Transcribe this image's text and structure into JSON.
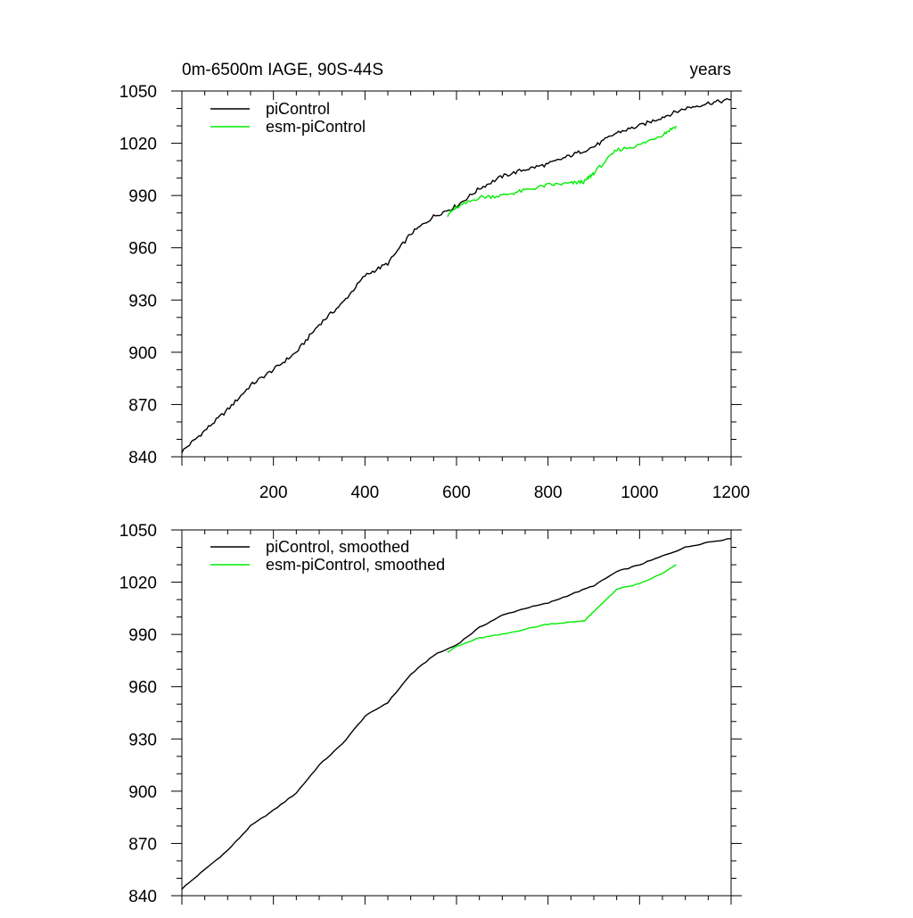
{
  "chart_data": [
    {
      "type": "line",
      "title": "0m-6500m IAGE, 90S-44S",
      "units": "years",
      "xlim": [
        0,
        1200
      ],
      "ylim": [
        840,
        1050
      ],
      "xticks": [
        "200",
        "400",
        "600",
        "800",
        "1000",
        "1200"
      ],
      "yticks": [
        "840",
        "870",
        "900",
        "930",
        "960",
        "990",
        "1020",
        "1050"
      ],
      "legend_position": "top-left",
      "grid": false,
      "series": [
        {
          "name": "piControl",
          "color": "#000000",
          "x": [
            0,
            50,
            100,
            150,
            200,
            250,
            300,
            350,
            400,
            450,
            500,
            550,
            600,
            650,
            700,
            750,
            800,
            850,
            900,
            950,
            1000,
            1050,
            1100,
            1150,
            1200
          ],
          "y": [
            843,
            855,
            867,
            881,
            890,
            900,
            916,
            928,
            944,
            951,
            968,
            978,
            984,
            994,
            1001,
            1005,
            1008,
            1013,
            1018,
            1026,
            1030,
            1035,
            1040,
            1043,
            1045
          ]
        },
        {
          "name": "esm-piControl",
          "color": "#00ee00",
          "x": [
            580,
            600,
            650,
            700,
            750,
            800,
            850,
            880,
            900,
            950,
            1000,
            1050,
            1080
          ],
          "y": [
            979,
            983,
            989,
            990,
            993,
            996,
            997,
            998,
            1003,
            1016,
            1019,
            1025,
            1030
          ]
        }
      ]
    },
    {
      "type": "line",
      "xlim": [
        0,
        1200
      ],
      "ylim": [
        840,
        1050
      ],
      "yticks": [
        "840",
        "870",
        "900",
        "930",
        "960",
        "990",
        "1020",
        "1050"
      ],
      "legend_position": "top-left",
      "grid": false,
      "series": [
        {
          "name": "piControl, smoothed",
          "color": "#000000",
          "x": [
            0,
            50,
            100,
            150,
            200,
            250,
            300,
            350,
            400,
            450,
            500,
            550,
            600,
            650,
            700,
            750,
            800,
            850,
            900,
            950,
            1000,
            1050,
            1100,
            1150,
            1200
          ],
          "y": [
            844,
            855,
            866,
            880,
            889,
            899,
            915,
            927,
            943,
            951,
            967,
            978,
            984,
            994,
            1001,
            1005,
            1008,
            1013,
            1018,
            1026,
            1030,
            1035,
            1040,
            1043,
            1045
          ]
        },
        {
          "name": "esm-piControl, smoothed",
          "color": "#00ee00",
          "x": [
            580,
            600,
            650,
            700,
            750,
            800,
            850,
            880,
            900,
            950,
            1000,
            1050,
            1080
          ],
          "y": [
            980,
            983,
            988,
            990,
            993,
            996,
            997,
            998,
            1003,
            1016,
            1019,
            1025,
            1030
          ]
        }
      ]
    }
  ]
}
